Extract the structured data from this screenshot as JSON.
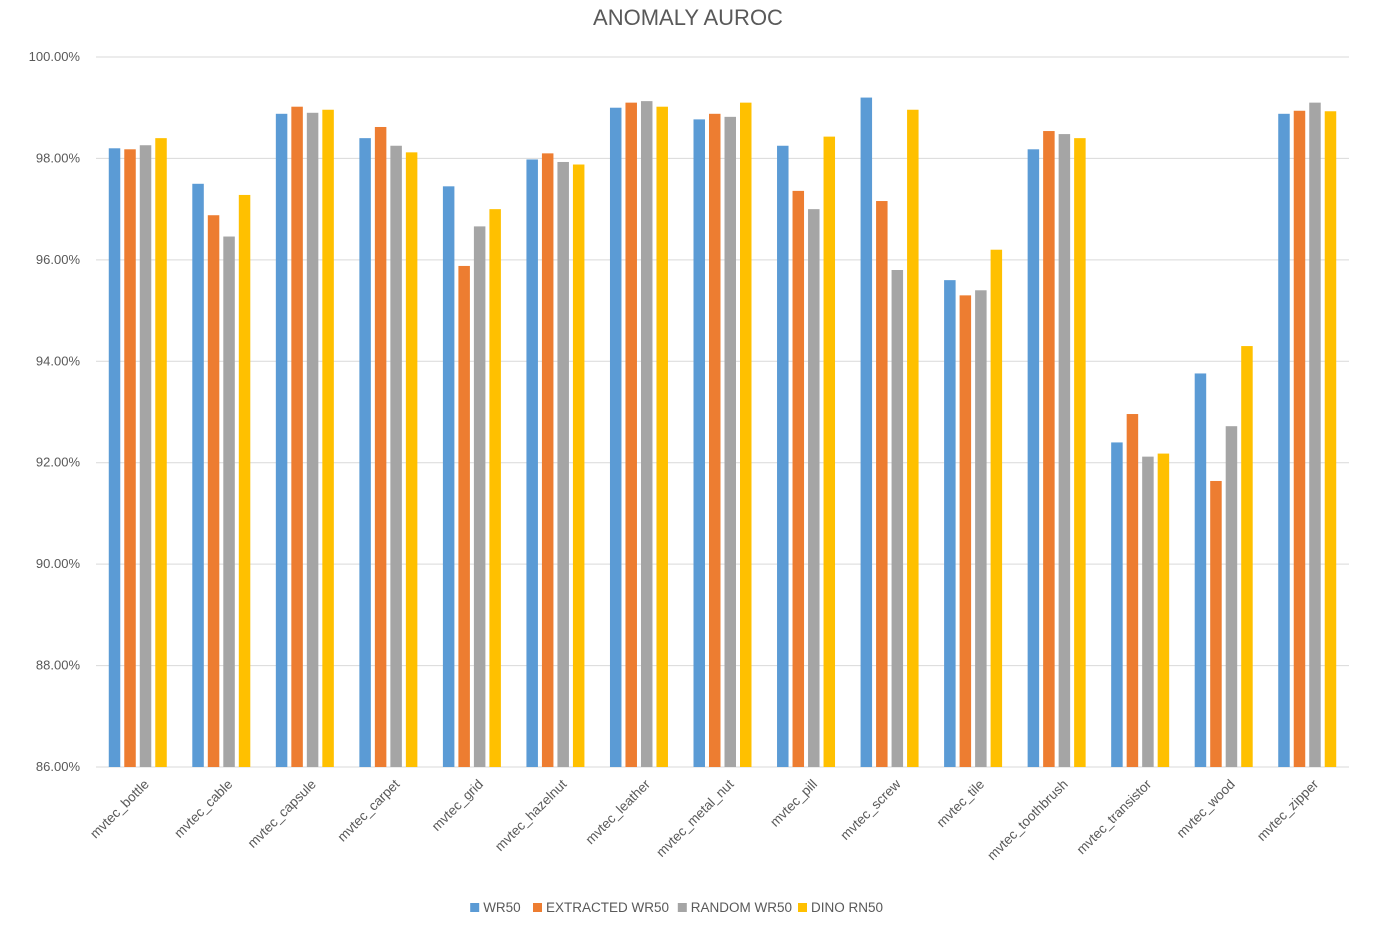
{
  "chart_data": {
    "type": "bar",
    "title": "ANOMALY AUROC",
    "xlabel": "",
    "ylabel": "",
    "ylim": [
      86,
      100
    ],
    "y_tick_values": [
      86,
      88,
      90,
      92,
      94,
      96,
      98,
      100
    ],
    "y_tick_labels": [
      "86.00%",
      "88.00%",
      "90.00%",
      "92.00%",
      "94.00%",
      "96.00%",
      "98.00%",
      "100.00%"
    ],
    "grid": true,
    "legend_position": "bottom",
    "categories": [
      "mvtec_bottle",
      "mvtec_cable",
      "mvtec_capsule",
      "mvtec_carpet",
      "mvtec_grid",
      "mvtec_hazelnut",
      "mvtec_leather",
      "mvtec_metal_nut",
      "mvtec_pill",
      "mvtec_screw",
      "mvtec_tile",
      "mvtec_toothbrush",
      "mvtec_transistor",
      "mvtec_wood",
      "mvtec_zipper"
    ],
    "series": [
      {
        "name": "WR50",
        "color": "#5b9bd5",
        "values": [
          98.2,
          97.5,
          98.88,
          98.4,
          97.45,
          97.98,
          99.0,
          98.77,
          98.25,
          99.2,
          95.6,
          98.18,
          92.4,
          93.76,
          98.88
        ]
      },
      {
        "name": "EXTRACTED WR50",
        "color": "#ed7d31",
        "values": [
          98.18,
          96.88,
          99.02,
          98.62,
          95.88,
          98.1,
          99.1,
          98.88,
          97.36,
          97.16,
          95.3,
          98.54,
          92.96,
          91.64,
          98.94
        ]
      },
      {
        "name": "RANDOM WR50",
        "color": "#a5a5a5",
        "values": [
          98.26,
          96.46,
          98.9,
          98.25,
          96.66,
          97.93,
          99.13,
          98.82,
          97.0,
          95.8,
          95.4,
          98.48,
          92.12,
          92.72,
          99.1
        ]
      },
      {
        "name": "DINO RN50",
        "color": "#ffc000",
        "values": [
          98.4,
          97.28,
          98.96,
          98.12,
          97.0,
          97.88,
          99.02,
          99.1,
          98.43,
          98.96,
          96.2,
          98.4,
          92.18,
          94.3,
          98.93
        ]
      }
    ]
  }
}
